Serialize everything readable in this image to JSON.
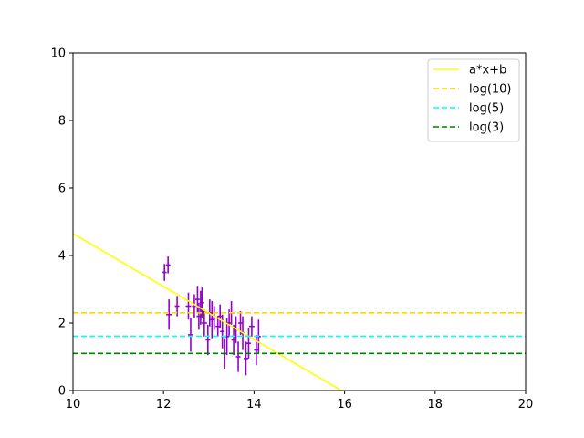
{
  "chart_data": {
    "type": "scatter",
    "title": "",
    "xlabel": "",
    "ylabel": "",
    "xlim": [
      10,
      20
    ],
    "ylim": [
      0,
      10
    ],
    "x_ticks": [
      "10",
      "12",
      "14",
      "16",
      "18",
      "20"
    ],
    "y_ticks": [
      "0",
      "2",
      "4",
      "6",
      "8",
      "10"
    ],
    "grid": false,
    "legend_position": "top-right",
    "series": [
      {
        "kind": "errorbar",
        "color": "#9400d3",
        "points": [
          {
            "x": 12.02,
            "y": 3.5,
            "xerr": 0.05,
            "yerr": 0.25
          },
          {
            "x": 12.1,
            "y": 3.72,
            "xerr": 0.05,
            "yerr": 0.25
          },
          {
            "x": 12.12,
            "y": 2.25,
            "xerr": 0.06,
            "yerr": 0.45
          },
          {
            "x": 12.3,
            "y": 2.5,
            "xerr": 0.05,
            "yerr": 0.3
          },
          {
            "x": 12.55,
            "y": 2.5,
            "xerr": 0.06,
            "yerr": 0.4
          },
          {
            "x": 12.6,
            "y": 1.65,
            "xerr": 0.06,
            "yerr": 0.5
          },
          {
            "x": 12.68,
            "y": 2.5,
            "xerr": 0.05,
            "yerr": 0.35
          },
          {
            "x": 12.75,
            "y": 2.7,
            "xerr": 0.05,
            "yerr": 0.4
          },
          {
            "x": 12.78,
            "y": 2.2,
            "xerr": 0.05,
            "yerr": 0.4
          },
          {
            "x": 12.82,
            "y": 2.45,
            "xerr": 0.05,
            "yerr": 0.5
          },
          {
            "x": 12.85,
            "y": 2.6,
            "xerr": 0.05,
            "yerr": 0.45
          },
          {
            "x": 12.9,
            "y": 2.0,
            "xerr": 0.06,
            "yerr": 0.4
          },
          {
            "x": 12.98,
            "y": 1.5,
            "xerr": 0.05,
            "yerr": 0.45
          },
          {
            "x": 13.02,
            "y": 2.3,
            "xerr": 0.06,
            "yerr": 0.4
          },
          {
            "x": 13.07,
            "y": 2.1,
            "xerr": 0.05,
            "yerr": 0.55
          },
          {
            "x": 13.12,
            "y": 2.15,
            "xerr": 0.05,
            "yerr": 0.35
          },
          {
            "x": 13.2,
            "y": 1.9,
            "xerr": 0.05,
            "yerr": 0.3
          },
          {
            "x": 13.25,
            "y": 2.2,
            "xerr": 0.06,
            "yerr": 0.35
          },
          {
            "x": 13.3,
            "y": 1.75,
            "xerr": 0.05,
            "yerr": 0.5
          },
          {
            "x": 13.35,
            "y": 1.1,
            "xerr": 0.06,
            "yerr": 0.45
          },
          {
            "x": 13.4,
            "y": 1.6,
            "xerr": 0.05,
            "yerr": 0.55
          },
          {
            "x": 13.45,
            "y": 2.0,
            "xerr": 0.05,
            "yerr": 0.4
          },
          {
            "x": 13.5,
            "y": 2.3,
            "xerr": 0.06,
            "yerr": 0.35
          },
          {
            "x": 13.55,
            "y": 1.5,
            "xerr": 0.05,
            "yerr": 0.45
          },
          {
            "x": 13.6,
            "y": 1.8,
            "xerr": 0.06,
            "yerr": 0.4
          },
          {
            "x": 13.65,
            "y": 1.0,
            "xerr": 0.05,
            "yerr": 0.45
          },
          {
            "x": 13.7,
            "y": 2.0,
            "xerr": 0.05,
            "yerr": 0.35
          },
          {
            "x": 13.75,
            "y": 1.7,
            "xerr": 0.06,
            "yerr": 0.5
          },
          {
            "x": 13.82,
            "y": 0.95,
            "xerr": 0.05,
            "yerr": 0.5
          },
          {
            "x": 13.88,
            "y": 1.4,
            "xerr": 0.05,
            "yerr": 0.45
          },
          {
            "x": 13.95,
            "y": 1.9,
            "xerr": 0.06,
            "yerr": 0.3
          },
          {
            "x": 14.05,
            "y": 1.2,
            "xerr": 0.05,
            "yerr": 0.45
          },
          {
            "x": 14.1,
            "y": 1.6,
            "xerr": 0.05,
            "yerr": 0.5
          }
        ]
      },
      {
        "name": "a*x+b",
        "kind": "line",
        "style": "solid",
        "color": "#ffff00",
        "x": [
          10,
          15.93
        ],
        "y": [
          4.65,
          0
        ]
      },
      {
        "name": "log(10)",
        "kind": "hline",
        "style": "dashed",
        "color": "#ffd700",
        "y": 2.3026
      },
      {
        "name": "log(5)",
        "kind": "hline",
        "style": "dashed",
        "color": "#00ffff",
        "y": 1.6094
      },
      {
        "name": "log(3)",
        "kind": "hline",
        "style": "dashed",
        "color": "#008000",
        "y": 1.0986
      }
    ]
  }
}
